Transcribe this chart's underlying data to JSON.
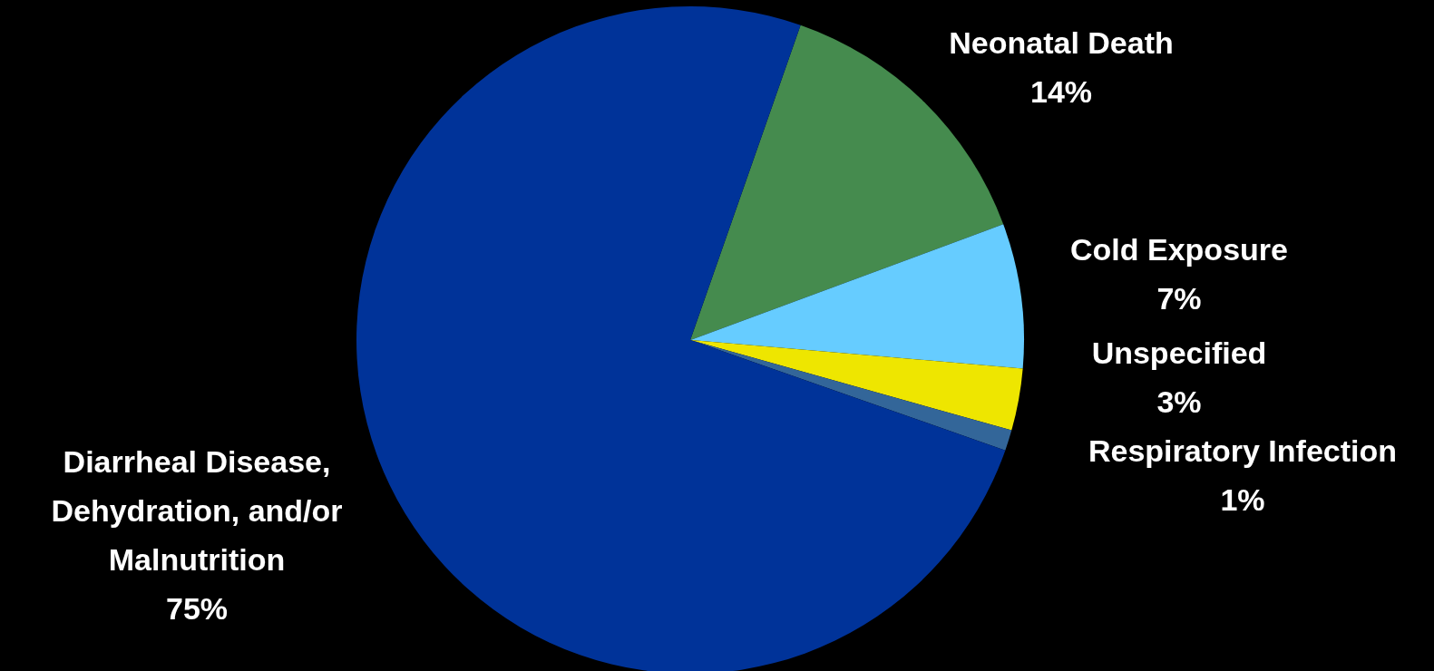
{
  "chart_data": {
    "type": "pie",
    "categories": [
      "Neonatal Death",
      "Cold Exposure",
      "Unspecified",
      "Respiratory Infection",
      "Diarrheal Disease, Dehydration, and/or Malnutrition"
    ],
    "values": [
      14,
      7,
      3,
      1,
      75
    ],
    "value_labels": [
      "14%",
      "7%",
      "3%",
      "1%",
      "75%"
    ],
    "colors": [
      "#458b4e",
      "#66ccff",
      "#eee600",
      "#336699",
      "#003399"
    ]
  }
}
